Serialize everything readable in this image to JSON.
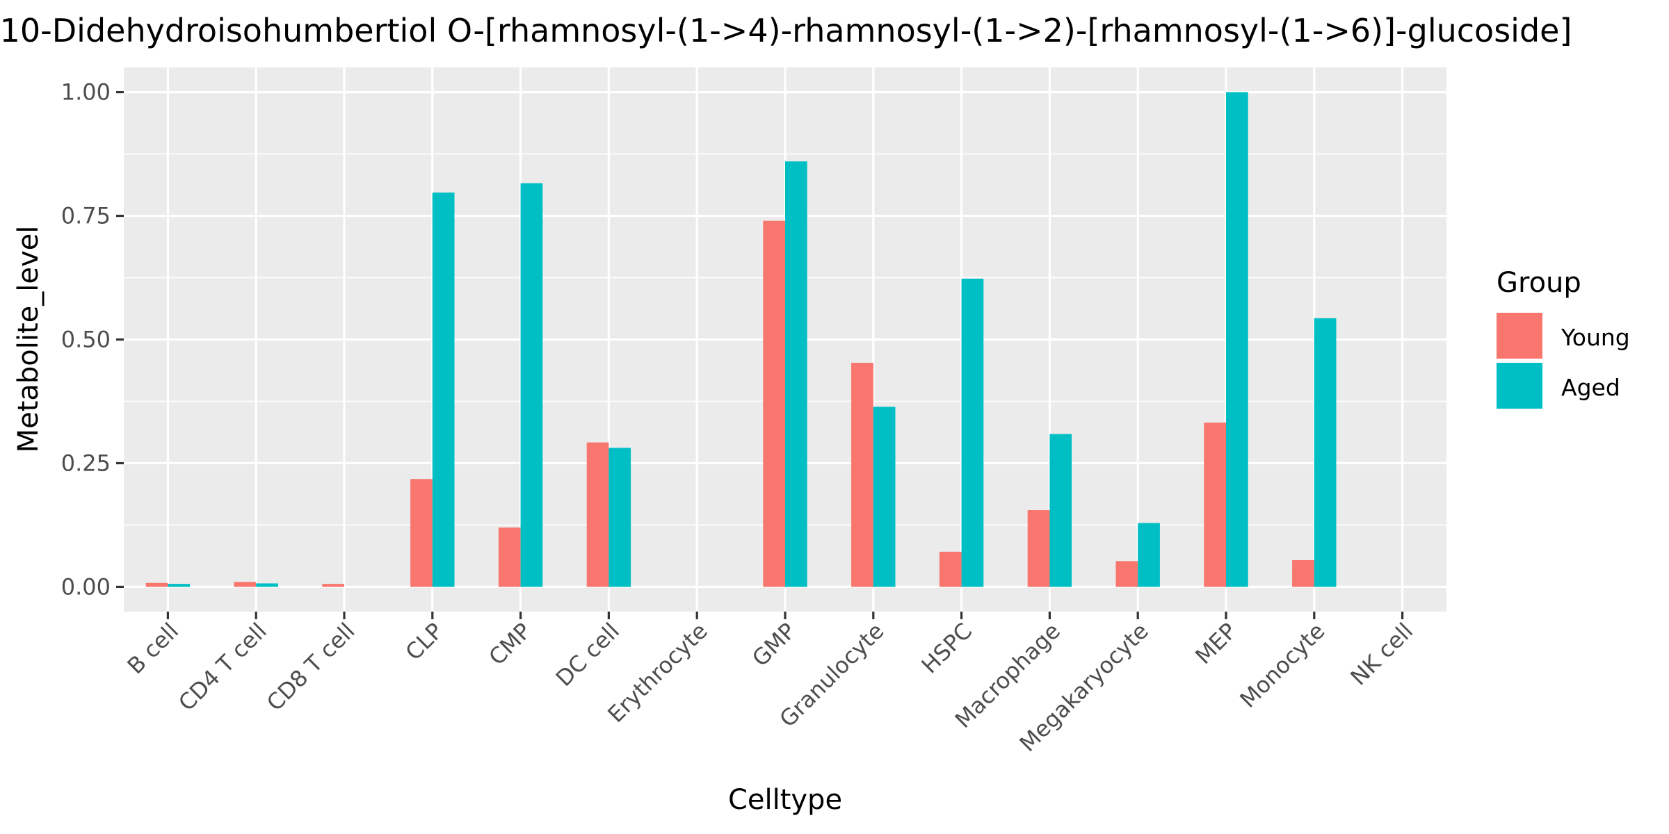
{
  "chart_data": {
    "type": "bar",
    "title": "10-Didehydroisohumbertiol O-[rhamnosyl-(1->4)-rhamnosyl-(1->2)-[rhamnosyl-(1->6)]-glucoside]",
    "xlabel": "Celltype",
    "ylabel": "Metabolite_level",
    "ylim": [
      -0.05,
      1.05
    ],
    "yticks": [
      0.0,
      0.25,
      0.5,
      0.75,
      1.0
    ],
    "ytick_labels": [
      "0.00",
      "0.25",
      "0.50",
      "0.75",
      "1.00"
    ],
    "categories": [
      "B cell",
      "CD4 T cell",
      "CD8 T cell",
      "CLP",
      "CMP",
      "DC cell",
      "Erythrocyte",
      "GMP",
      "Granulocyte",
      "HSPC",
      "Macrophage",
      "Megakaryocyte",
      "MEP",
      "Monocyte",
      "NK cell"
    ],
    "legend_title": "Group",
    "legend_position": "right",
    "grid": true,
    "series": [
      {
        "name": "Young",
        "color": "#F8766D",
        "values": [
          0.008,
          0.01,
          0.006,
          0.218,
          0.12,
          0.292,
          0.0,
          0.74,
          0.453,
          0.071,
          0.155,
          0.052,
          0.332,
          0.054,
          0.0
        ]
      },
      {
        "name": "Aged",
        "color": "#00BFC4",
        "values": [
          0.006,
          0.007,
          0.0,
          0.797,
          0.816,
          0.281,
          0.0,
          0.86,
          0.364,
          0.623,
          0.309,
          0.129,
          1.0,
          0.543,
          0.0
        ]
      }
    ]
  }
}
